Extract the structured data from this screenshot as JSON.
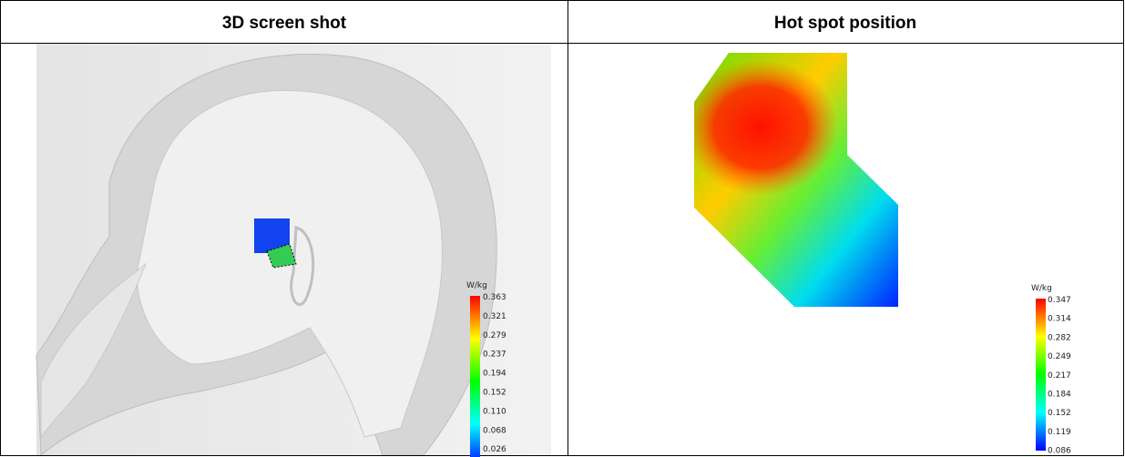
{
  "table": {
    "headers": [
      "3D screen shot",
      "Hot spot position"
    ]
  },
  "left_legend": {
    "unit": "W/kg",
    "labels": [
      "0.363",
      "0.321",
      "0.279",
      "0.237",
      "0.194",
      "0.152",
      "0.110",
      "0.068",
      "0.026"
    ]
  },
  "right_legend": {
    "unit": "W/kg",
    "labels": [
      "0.347",
      "0.314",
      "0.282",
      "0.249",
      "0.217",
      "0.184",
      "0.152",
      "0.119",
      "0.086"
    ]
  }
}
